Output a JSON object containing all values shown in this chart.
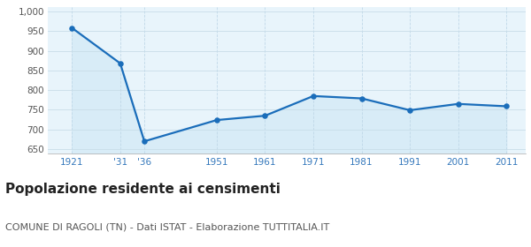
{
  "years": [
    1921,
    1931,
    1936,
    1951,
    1961,
    1971,
    1981,
    1991,
    2001,
    2011
  ],
  "x_labels": [
    "1921",
    "'31",
    "'36",
    "1951",
    "1961",
    "1971",
    "1981",
    "1991",
    "2001",
    "2011"
  ],
  "population": [
    958,
    868,
    670,
    724,
    735,
    785,
    779,
    749,
    765,
    759
  ],
  "line_color": "#1a6dba",
  "fill_color": "#d8ecf7",
  "marker_color": "#1a6dba",
  "bg_color": "#e8f4fb",
  "outer_bg": "#ffffff",
  "grid_color_h": "#c8dde8",
  "grid_color_v": "#c0d8e8",
  "ylim": [
    640,
    1010
  ],
  "yticks": [
    650,
    700,
    750,
    800,
    850,
    900,
    950,
    1000
  ],
  "ytick_labels": [
    "650",
    "700",
    "750",
    "800",
    "850",
    "900",
    "950",
    "1,000"
  ],
  "title": "Popolazione residente ai censimenti",
  "subtitle": "COMUNE DI RAGOLI (TN) - Dati ISTAT - Elaborazione TUTTITALIA.IT",
  "title_fontsize": 11,
  "subtitle_fontsize": 8,
  "tick_fontsize": 7.5,
  "xtick_color": "#3377bb",
  "ytick_color": "#555555",
  "title_color": "#222222",
  "subtitle_color": "#555555"
}
